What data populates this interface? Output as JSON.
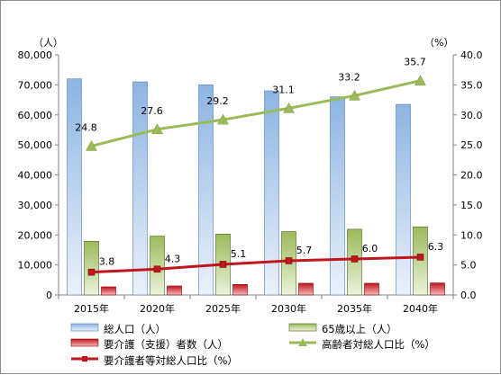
{
  "chart_data": {
    "type": "bar+line",
    "categories": [
      "2015年",
      "2020年",
      "2025年",
      "2030年",
      "2035年",
      "2040年"
    ],
    "left_axis": {
      "unit": "（人）",
      "min": 0,
      "max": 80000,
      "step": 10000,
      "ticks": [
        "0",
        "10,000",
        "20,000",
        "30,000",
        "40,000",
        "50,000",
        "60,000",
        "70,000",
        "80,000"
      ]
    },
    "right_axis": {
      "unit": "（%）",
      "min": 0,
      "max": 40,
      "step": 5,
      "ticks": [
        "0.0",
        "5.0",
        "10.0",
        "15.0",
        "20.0",
        "25.0",
        "30.0",
        "35.0",
        "40.0"
      ]
    },
    "bar_series": [
      {
        "name": "総人口（人）",
        "axis": "left",
        "color": "#8db4e2",
        "values": [
          72000,
          71000,
          70000,
          68000,
          66000,
          63500
        ]
      },
      {
        "name": "65歳以上（人）",
        "axis": "left",
        "color": "#9bbb59",
        "values": [
          17900,
          19600,
          20300,
          21100,
          21900,
          22700
        ]
      },
      {
        "name": "要介護（支援）者数（人）",
        "axis": "left",
        "color": "#e06060",
        "values": [
          2700,
          3000,
          3500,
          3900,
          3900,
          4000
        ]
      }
    ],
    "line_series": [
      {
        "name": "高齢者対総人口比（%）",
        "axis": "right",
        "color": "#9bbb59",
        "marker": "triangle",
        "values": [
          24.8,
          27.6,
          29.2,
          31.1,
          33.2,
          35.7
        ],
        "labels": [
          "24.8",
          "27.6",
          "29.2",
          "31.1",
          "33.2",
          "35.7"
        ]
      },
      {
        "name": "要介護者等対総人口比（%）",
        "axis": "right",
        "color": "#c0161d",
        "marker": "square",
        "values": [
          3.8,
          4.3,
          5.1,
          5.7,
          6.0,
          6.3
        ],
        "labels": [
          "3.8",
          "4.3",
          "5.1",
          "5.7",
          "6.0",
          "6.3"
        ]
      }
    ],
    "grid": false,
    "legend_position": "bottom"
  }
}
